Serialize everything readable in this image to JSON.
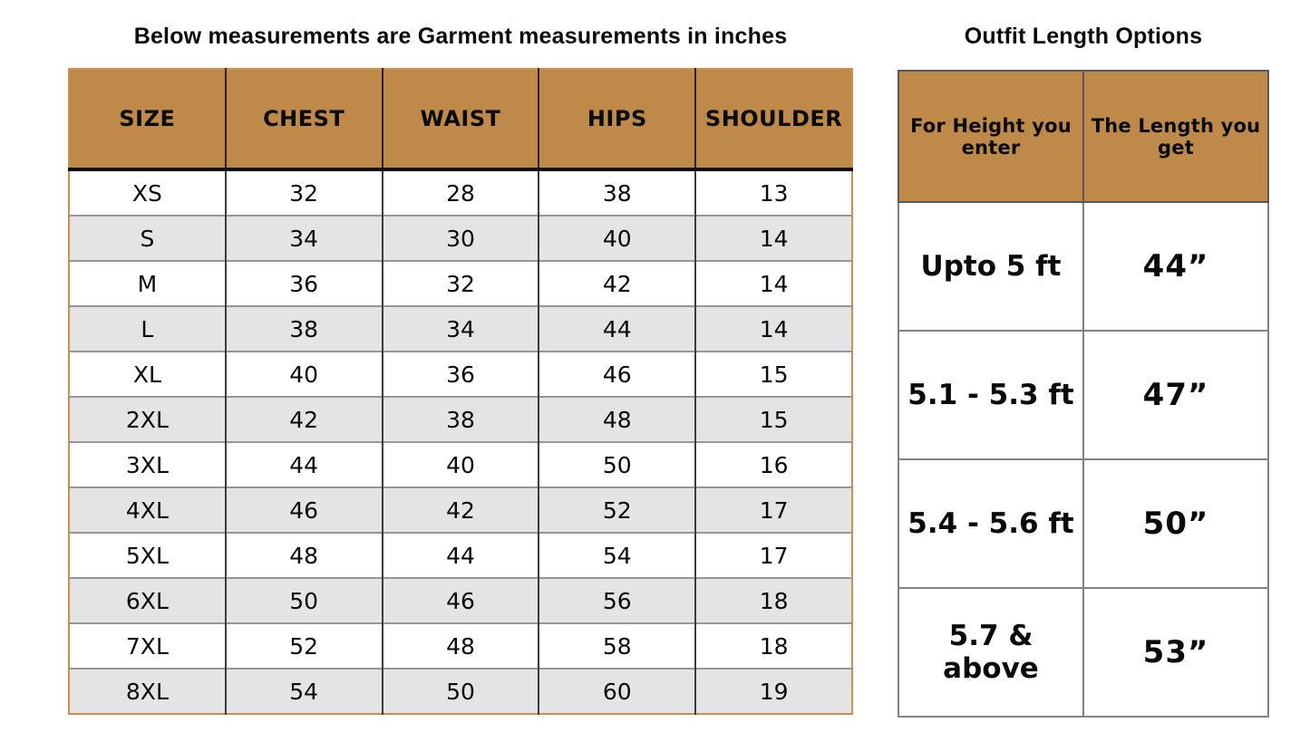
{
  "titles": {
    "left": "Below measurements are Garment measurements in inches",
    "right": "Outfit Length Options"
  },
  "size_table": {
    "columns": [
      "SIZE",
      "CHEST",
      "WAIST",
      "HIPS",
      "SHOULDER"
    ],
    "rows": [
      [
        "XS",
        "32",
        "28",
        "38",
        "13"
      ],
      [
        "S",
        "34",
        "30",
        "40",
        "14"
      ],
      [
        "M",
        "36",
        "32",
        "42",
        "14"
      ],
      [
        "L",
        "38",
        "34",
        "44",
        "14"
      ],
      [
        "XL",
        "40",
        "36",
        "46",
        "15"
      ],
      [
        "2XL",
        "42",
        "38",
        "48",
        "15"
      ],
      [
        "3XL",
        "44",
        "40",
        "50",
        "16"
      ],
      [
        "4XL",
        "46",
        "42",
        "52",
        "17"
      ],
      [
        "5XL",
        "48",
        "44",
        "54",
        "17"
      ],
      [
        "6XL",
        "50",
        "46",
        "56",
        "18"
      ],
      [
        "7XL",
        "52",
        "48",
        "58",
        "18"
      ],
      [
        "8XL",
        "54",
        "50",
        "60",
        "19"
      ]
    ]
  },
  "length_table": {
    "columns": [
      "For Height you enter",
      "The Length you get"
    ],
    "rows": [
      [
        "Upto 5 ft",
        "44”"
      ],
      [
        "5.1 - 5.3 ft",
        "47”"
      ],
      [
        "5.4 - 5.6 ft",
        "50”"
      ],
      [
        "5.7 & above",
        "53”"
      ]
    ]
  },
  "colors": {
    "header_brown": "#bf8a49",
    "row_alt_gray": "#e4e4e6",
    "outer_border_tan": "#c89150",
    "grid_gray": "#828282",
    "text": "#0a0a0a"
  },
  "chart_data": [
    {
      "type": "table",
      "title": "Below measurements are Garment measurements in inches",
      "columns": [
        "SIZE",
        "CHEST",
        "WAIST",
        "HIPS",
        "SHOULDER"
      ],
      "rows": [
        [
          "XS",
          32,
          28,
          38,
          13
        ],
        [
          "S",
          34,
          30,
          40,
          14
        ],
        [
          "M",
          36,
          32,
          42,
          14
        ],
        [
          "L",
          38,
          34,
          44,
          14
        ],
        [
          "XL",
          40,
          36,
          46,
          15
        ],
        [
          "2XL",
          42,
          38,
          48,
          15
        ],
        [
          "3XL",
          44,
          40,
          50,
          16
        ],
        [
          "4XL",
          46,
          42,
          52,
          17
        ],
        [
          "5XL",
          48,
          44,
          54,
          17
        ],
        [
          "6XL",
          50,
          46,
          56,
          18
        ],
        [
          "7XL",
          52,
          48,
          58,
          18
        ],
        [
          "8XL",
          54,
          50,
          60,
          19
        ]
      ],
      "units": "inches"
    },
    {
      "type": "table",
      "title": "Outfit Length Options",
      "columns": [
        "For Height you enter",
        "The Length you get"
      ],
      "rows": [
        [
          "Upto 5 ft",
          "44”"
        ],
        [
          "5.1 - 5.3 ft",
          "47”"
        ],
        [
          "5.4 - 5.6 ft",
          "50”"
        ],
        [
          "5.7 & above",
          "53”"
        ]
      ]
    }
  ]
}
